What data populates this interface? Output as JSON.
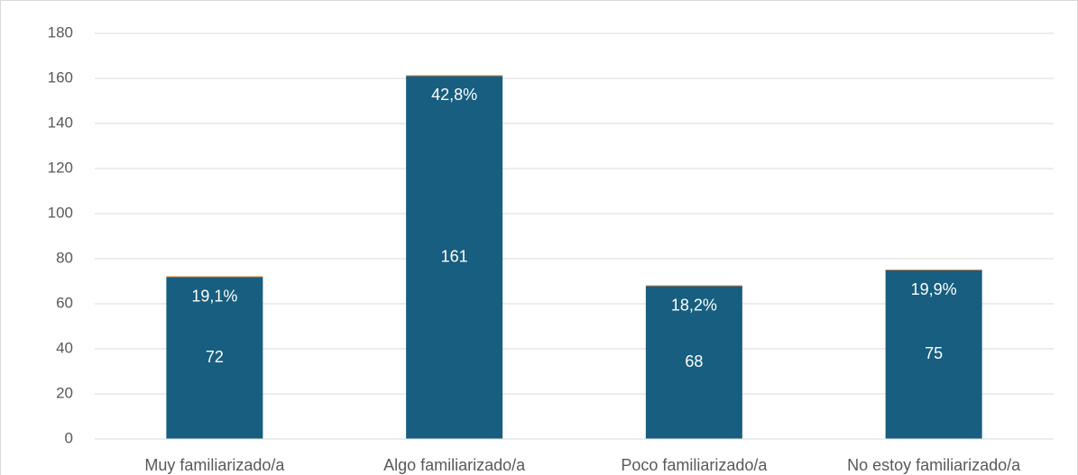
{
  "chart_data": {
    "type": "stacked_bar",
    "categories": [
      "Muy familiarizado/a",
      "Algo familiarizado/a",
      "Poco familiarizado/a",
      "No estoy familiarizado/a"
    ],
    "series": [
      {
        "color": "#175e80",
        "values": [
          72,
          161,
          68,
          75
        ]
      },
      {
        "color": "#e08b3a",
        "values": [
          0.191,
          0.428,
          0.182,
          0.199
        ],
        "value_labels": [
          "19,1%",
          "42,8%",
          "18,2%",
          "19,9%"
        ]
      }
    ],
    "ylim": [
      0,
      180
    ],
    "yticks": [
      0,
      20,
      40,
      60,
      80,
      100,
      120,
      140,
      160,
      180
    ],
    "grid": true
  }
}
